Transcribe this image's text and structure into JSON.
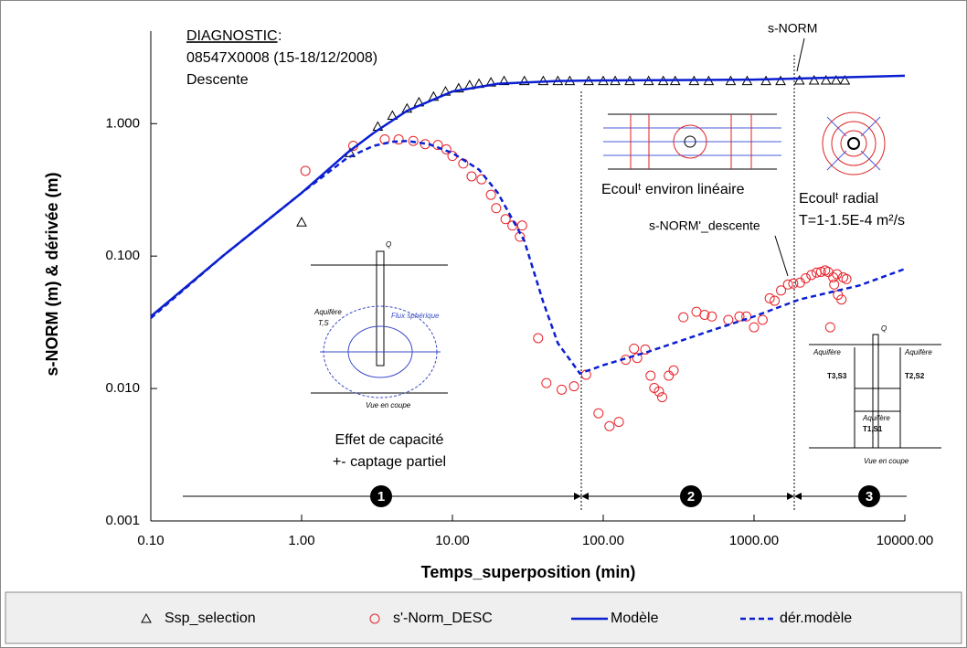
{
  "chart_data": {
    "type": "scatter",
    "xscale": "log",
    "yscale": "log",
    "xlabel": "Temps_superposition (min)",
    "ylabel": "s-NORM (m) & dérivée (m)",
    "xlim": [
      0.1,
      10000
    ],
    "ylim": [
      0.001,
      5
    ],
    "xticks": [
      {
        "value": 0.1,
        "label": "0.10"
      },
      {
        "value": 1,
        "label": "1.00"
      },
      {
        "value": 10,
        "label": "10.00"
      },
      {
        "value": 100,
        "label": "100.00"
      },
      {
        "value": 1000,
        "label": "1000.00"
      },
      {
        "value": 10000,
        "label": "10000.00"
      }
    ],
    "yticks": [
      0.001,
      {
        "value": 0.01,
        "label": "0.010"
      },
      {
        "value": 0.1,
        "label": "0.100"
      },
      {
        "value": 1,
        "label": "1.000"
      }
    ],
    "legend": "bottom",
    "series": [
      {
        "name": "Ssp_selection",
        "style": "triangle",
        "color": "#000000",
        "x": [
          1.0,
          2.1,
          3.2,
          4.0,
          5,
          6,
          7.5,
          9,
          11,
          13,
          15,
          18,
          22,
          30,
          40,
          50,
          60,
          80,
          100,
          120,
          150,
          200,
          250,
          300,
          400,
          500,
          700,
          900,
          1200,
          1500,
          2000,
          2500,
          3000,
          3500,
          4000
        ],
        "values": [
          0.18,
          0.6,
          0.95,
          1.15,
          1.3,
          1.45,
          1.6,
          1.75,
          1.85,
          1.95,
          2.0,
          2.05,
          2.1,
          2.1,
          2.1,
          2.1,
          2.1,
          2.1,
          2.1,
          2.1,
          2.1,
          2.1,
          2.1,
          2.1,
          2.1,
          2.1,
          2.1,
          2.1,
          2.1,
          2.1,
          2.12,
          2.12,
          2.12,
          2.12,
          2.12
        ]
      },
      {
        "name": "s'-Norm_DESC",
        "style": "circle",
        "color": "#e8232a",
        "x": [
          1.06,
          2.2,
          3.56,
          4.4,
          5.5,
          6.6,
          8,
          9.1,
          10,
          11.8,
          13.4,
          15.6,
          18,
          19.5,
          22.5,
          25,
          28,
          29,
          37,
          42,
          53,
          64,
          77,
          93,
          110,
          127,
          141,
          160,
          168,
          190,
          206,
          218,
          234,
          246,
          272,
          293,
          340,
          415,
          470,
          525,
          675,
          800,
          890,
          1000,
          1140,
          1270,
          1370,
          1510,
          1680,
          1820,
          2020,
          2200,
          2400,
          2600,
          2780,
          2960,
          3100,
          3350,
          3550,
          3900,
          4100,
          3400,
          3600,
          3800,
          3200
        ],
        "values": [
          0.44,
          0.68,
          0.76,
          0.76,
          0.74,
          0.7,
          0.69,
          0.64,
          0.57,
          0.5,
          0.4,
          0.38,
          0.29,
          0.23,
          0.19,
          0.17,
          0.14,
          0.17,
          0.024,
          0.011,
          0.0098,
          0.0104,
          0.0127,
          0.0065,
          0.0052,
          0.0056,
          0.0165,
          0.02,
          0.017,
          0.0197,
          0.0125,
          0.0101,
          0.0095,
          0.0086,
          0.0125,
          0.0137,
          0.0345,
          0.038,
          0.036,
          0.035,
          0.033,
          0.035,
          0.035,
          0.029,
          0.033,
          0.048,
          0.046,
          0.055,
          0.061,
          0.062,
          0.063,
          0.068,
          0.072,
          0.075,
          0.076,
          0.078,
          0.076,
          0.069,
          0.073,
          0.069,
          0.067,
          0.061,
          0.051,
          0.047,
          0.029
        ]
      },
      {
        "name": "Modèle",
        "style": "solid",
        "color": "#0b1fd1",
        "x": [
          0.1,
          0.3,
          1,
          2,
          3,
          5,
          10,
          20,
          50,
          100,
          1000,
          10000
        ],
        "values": [
          0.035,
          0.1,
          0.3,
          0.6,
          0.85,
          1.25,
          1.75,
          2.0,
          2.1,
          2.12,
          2.15,
          2.3
        ]
      },
      {
        "name": "dér.modèle",
        "style": "dashed",
        "color": "#0b1fd1",
        "x": [
          0.1,
          0.3,
          1,
          2,
          3,
          4,
          5,
          7,
          10,
          15,
          20,
          30,
          40,
          50,
          70,
          100,
          200,
          500,
          1000,
          2000,
          5000,
          10000
        ],
        "values": [
          0.034,
          0.1,
          0.3,
          0.55,
          0.68,
          0.73,
          0.74,
          0.7,
          0.6,
          0.45,
          0.3,
          0.13,
          0.045,
          0.022,
          0.013,
          0.015,
          0.019,
          0.027,
          0.035,
          0.047,
          0.06,
          0.08
        ]
      }
    ],
    "annotations": {
      "diag": "DIAGNOSTIC",
      "colon": ":",
      "well": "08547X0008 (15-18/12/2008)",
      "phase": "Descente",
      "snorm": "s-NORM",
      "lin": "Ecoulᵗ environ linéaire",
      "rad": "Ecoulᵗ radial",
      "T": "T=1-1.5E-4 m²/s",
      "deriv": "s-NORM'_descente",
      "cap1": "Effet de capacité",
      "cap2": "+- captage partiel",
      "n1": "1",
      "n2": "2",
      "n3": "3",
      "q1": "Q",
      "aq1": "Aquifère",
      "ts": "T,S",
      "flux": "Flux sphérique",
      "vue1": "Vue en coupe",
      "q2": "Q",
      "aqL": "Aquifère",
      "aqR": "Aquifère",
      "t3": "T3,S3",
      "t2": "T2,S2",
      "aqM": "Aquifère",
      "t1": "T1,S1",
      "vue2": "Vue en coupe"
    }
  }
}
